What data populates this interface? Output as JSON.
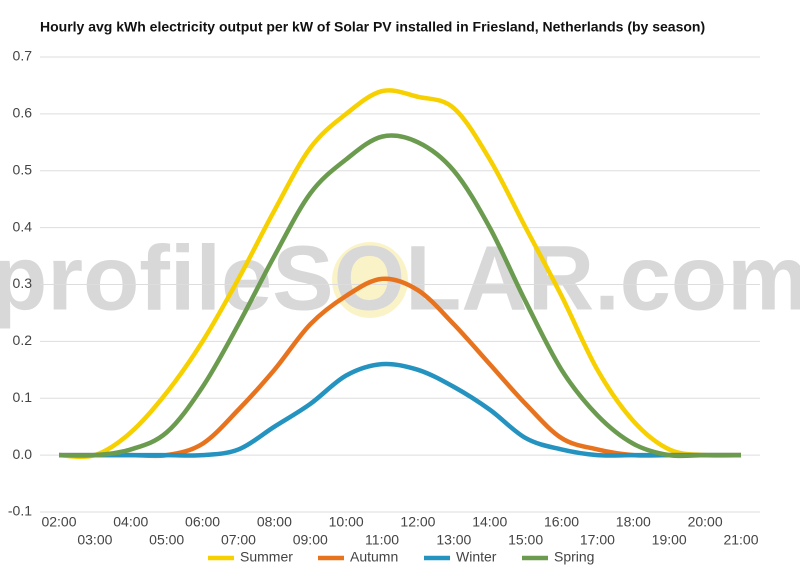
{
  "chart_data": {
    "type": "line",
    "title": "Hourly avg kWh electricity output per kW of Solar PV installed in Friesland, Netherlands (by season)",
    "watermark": "profileSOLAR.com",
    "categories": [
      "02:00",
      "03:00",
      "04:00",
      "05:00",
      "06:00",
      "07:00",
      "08:00",
      "09:00",
      "10:00",
      "11:00",
      "12:00",
      "13:00",
      "14:00",
      "15:00",
      "16:00",
      "17:00",
      "18:00",
      "19:00",
      "20:00",
      "21:00"
    ],
    "series": [
      {
        "name": "Summer",
        "color": "#f7d000",
        "values": [
          0,
          0,
          0.04,
          0.11,
          0.2,
          0.31,
          0.43,
          0.54,
          0.6,
          0.64,
          0.63,
          0.61,
          0.52,
          0.4,
          0.28,
          0.15,
          0.06,
          0.01,
          0,
          0
        ]
      },
      {
        "name": "Autumn",
        "color": "#e8731f",
        "values": [
          0,
          0,
          0,
          0,
          0.02,
          0.08,
          0.15,
          0.23,
          0.28,
          0.31,
          0.29,
          0.23,
          0.16,
          0.09,
          0.03,
          0.01,
          0,
          0,
          0,
          0
        ]
      },
      {
        "name": "Winter",
        "color": "#2593bf",
        "values": [
          0,
          0,
          0,
          0,
          0,
          0.01,
          0.05,
          0.09,
          0.14,
          0.16,
          0.15,
          0.12,
          0.08,
          0.03,
          0.01,
          0,
          0,
          0,
          0,
          0
        ]
      },
      {
        "name": "Spring",
        "color": "#6b9b4e",
        "values": [
          0,
          0,
          0.01,
          0.04,
          0.12,
          0.23,
          0.35,
          0.46,
          0.52,
          0.56,
          0.55,
          0.5,
          0.4,
          0.27,
          0.15,
          0.07,
          0.02,
          0,
          0,
          0
        ]
      }
    ],
    "ylim": [
      -0.1,
      0.7
    ],
    "yticks": [
      -0.1,
      {
        "value": 0,
        "label": "0.0"
      },
      0.1,
      0.2,
      0.3,
      0.4,
      0.5,
      0.6,
      0.7
    ],
    "grid": true,
    "legend": "bottom"
  }
}
